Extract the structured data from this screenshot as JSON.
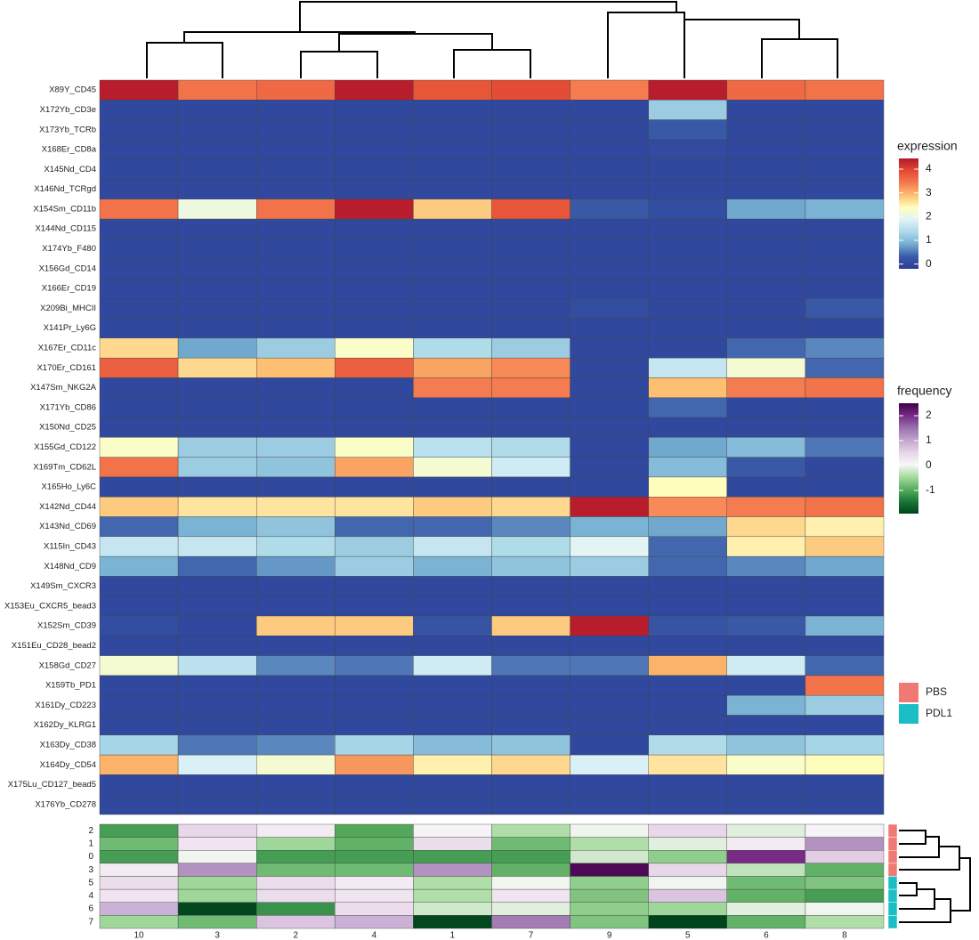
{
  "chart_data": {
    "type": "heatmap",
    "columns": [
      "10",
      "3",
      "2",
      "4",
      "1",
      "7",
      "9",
      "5",
      "6",
      "8"
    ],
    "rows": [
      "X89Y_CD45",
      "X172Yb_CD3e",
      "X173Yb_TCRb",
      "X168Er_CD8a",
      "X145Nd_CD4",
      "X146Nd_TCRgd",
      "X154Sm_CD11b",
      "X144Nd_CD115",
      "X174Yb_F480",
      "X156Gd_CD14",
      "X166Er_CD19",
      "X209Bi_MHCII",
      "X141Pr_Ly6G",
      "X167Er_CD11c",
      "X170Er_CD161",
      "X147Sm_NKG2A",
      "X171Yb_CD86",
      "X150Nd_CD25",
      "X155Gd_CD122",
      "X169Tm_CD62L",
      "X165Ho_Ly6C",
      "X142Nd_CD44",
      "X143Nd_CD69",
      "X115In_CD43",
      "X148Nd_CD9",
      "X149Sm_CXCR3",
      "X153Eu_CXCR5_bead3",
      "X152Sm_CD39",
      "X151Eu_CD28_bead2",
      "X158Gd_CD27",
      "X159Tb_PD1",
      "X161Dy_CD223",
      "X162Dy_KLRG1",
      "X163Dy_CD38",
      "X164Dy_CD54",
      "X175Lu_CD127_bead5",
      "X176Yb_CD278"
    ],
    "values": [
      [
        4.4,
        3.5,
        3.6,
        4.4,
        3.8,
        3.9,
        3.4,
        4.4,
        3.6,
        3.5
      ],
      [
        0,
        0,
        0,
        0,
        0,
        0,
        0,
        1.2,
        0,
        0
      ],
      [
        0,
        0,
        0,
        0,
        0,
        0,
        0,
        0.3,
        0,
        0
      ],
      [
        0,
        0,
        0,
        0,
        0,
        0,
        0,
        0.05,
        0,
        0
      ],
      [
        0,
        0,
        0,
        0,
        0,
        0,
        0,
        0,
        0,
        0
      ],
      [
        0,
        0,
        0,
        0,
        0,
        0,
        0,
        0,
        0,
        0
      ],
      [
        3.5,
        2.1,
        3.5,
        4.4,
        2.8,
        3.8,
        0.3,
        0.1,
        0.8,
        0.9
      ],
      [
        0,
        0,
        0,
        0,
        0,
        0,
        0,
        0,
        0,
        0
      ],
      [
        0,
        0,
        0,
        0,
        0,
        0,
        0,
        0,
        0,
        0
      ],
      [
        0,
        0,
        0,
        0,
        0,
        0,
        0,
        0,
        0,
        0
      ],
      [
        0,
        0,
        0,
        0,
        0,
        0,
        0,
        0,
        0,
        0
      ],
      [
        0,
        0,
        0,
        0,
        0,
        0,
        0.1,
        0,
        0,
        0.3
      ],
      [
        0,
        0,
        0,
        0,
        0,
        0,
        0,
        0,
        0,
        0
      ],
      [
        2.7,
        0.8,
        1.2,
        2.3,
        1.4,
        1.2,
        0,
        0,
        0.4,
        0.6
      ],
      [
        3.7,
        2.7,
        2.9,
        3.7,
        3.1,
        3.3,
        0,
        1.6,
        2.2,
        0.4
      ],
      [
        0,
        0,
        0,
        0,
        3.4,
        3.4,
        0,
        2.9,
        3.4,
        3.5
      ],
      [
        0,
        0,
        0,
        0,
        0,
        0,
        0,
        0.4,
        0,
        0
      ],
      [
        0,
        0,
        0,
        0,
        0,
        0,
        0,
        0,
        0,
        0
      ],
      [
        2.3,
        1.2,
        1.2,
        2.3,
        1.5,
        1.4,
        0,
        0.8,
        1.0,
        0.5
      ],
      [
        3.5,
        1.2,
        1.1,
        3.1,
        2.2,
        1.7,
        0,
        1.0,
        0.3,
        0
      ],
      [
        0,
        0,
        0,
        0,
        0,
        0,
        0,
        2.4,
        0,
        0
      ],
      [
        2.8,
        2.6,
        2.6,
        2.6,
        2.8,
        2.7,
        4.4,
        3.3,
        3.4,
        3.5
      ],
      [
        0.4,
        0.9,
        1.1,
        0.4,
        0.4,
        0.6,
        0.9,
        0.8,
        2.7,
        2.5
      ],
      [
        1.6,
        1.6,
        1.4,
        1.2,
        1.6,
        1.4,
        1.9,
        0.4,
        2.5,
        2.8
      ],
      [
        0.9,
        0.4,
        0.7,
        1.2,
        0.9,
        1.1,
        1.2,
        0.4,
        0.6,
        0.8
      ],
      [
        0,
        0,
        0,
        0,
        0,
        0,
        0,
        0,
        0,
        0
      ],
      [
        0,
        0,
        0,
        0,
        0,
        0,
        0,
        0,
        0,
        0
      ],
      [
        0.1,
        0,
        2.8,
        2.8,
        0.2,
        2.8,
        4.4,
        0.2,
        0.3,
        0.9
      ],
      [
        0,
        0,
        0,
        0,
        0,
        0,
        0,
        0,
        0,
        0
      ],
      [
        2.2,
        1.5,
        0.6,
        0.5,
        1.7,
        0.5,
        0.5,
        3.0,
        1.7,
        0.4
      ],
      [
        0,
        0,
        0,
        0,
        0,
        0,
        0,
        0,
        0,
        3.5
      ],
      [
        0,
        0,
        0,
        0,
        0,
        0,
        0,
        0,
        0.9,
        1.2
      ],
      [
        0,
        0,
        0,
        0,
        0,
        0,
        0,
        0,
        0,
        0
      ],
      [
        1.3,
        0.5,
        0.6,
        1.3,
        1.0,
        1.1,
        0,
        1.4,
        1.1,
        1.3
      ],
      [
        3.0,
        1.8,
        2.2,
        3.2,
        2.5,
        2.7,
        1.8,
        2.6,
        2.3,
        2.4
      ],
      [
        0,
        0,
        0,
        0,
        0,
        0,
        0,
        0,
        0,
        0
      ],
      [
        0,
        0,
        0,
        0,
        0,
        0,
        0,
        0,
        0,
        0
      ]
    ],
    "color_scale": {
      "title": "expression",
      "lim": [
        -0.2,
        4.45
      ],
      "ticks": [
        0,
        1,
        2,
        3,
        4
      ],
      "colors": [
        "#2a3d96",
        "#3a5aa8",
        "#74add1",
        "#abd9e9",
        "#e0f3f8",
        "#ffffbf",
        "#fdbf71",
        "#f57a4f",
        "#e34a33",
        "#b2182b"
      ]
    },
    "annotation": {
      "rows": [
        "2",
        "1",
        "0",
        "3",
        "5",
        "4",
        "6",
        "7"
      ],
      "values": [
        [
          -1.1,
          0.5,
          0.2,
          -1.0,
          0.1,
          -0.4,
          0.0,
          0.5,
          -0.1,
          0.1
        ],
        [
          -0.8,
          0.3,
          -0.5,
          -0.9,
          0.4,
          -0.8,
          -0.4,
          -0.1,
          0.2,
          1.2
        ],
        [
          -1.1,
          0.0,
          -1.1,
          -1.1,
          -1.1,
          -1.1,
          -0.2,
          -0.6,
          2.0,
          0.6
        ],
        [
          0.2,
          1.2,
          -0.8,
          -0.8,
          1.2,
          -0.9,
          2.4,
          0.5,
          -0.3,
          -0.9
        ],
        [
          0.4,
          -0.5,
          0.4,
          0.2,
          -0.4,
          0.0,
          -0.6,
          0.0,
          -0.8,
          -0.7
        ],
        [
          0.3,
          -0.5,
          0.4,
          0.3,
          -0.4,
          0.3,
          -0.7,
          0.7,
          -0.9,
          -1.1
        ],
        [
          0.9,
          -1.9,
          -1.2,
          0.4,
          -0.2,
          -0.1,
          -0.6,
          -0.5,
          -0.1,
          0.0
        ],
        [
          -0.5,
          -0.8,
          0.7,
          0.9,
          -1.9,
          1.4,
          -0.7,
          -2.0,
          -0.9,
          -0.4
        ]
      ],
      "groups": [
        "PBS",
        "PBS",
        "PBS",
        "PBS",
        "PDL1",
        "PDL1",
        "PDL1",
        "PDL1"
      ],
      "color_scale": {
        "title": "frequency",
        "lim": [
          -1.93,
          2.5
        ],
        "ticks": [
          -1,
          0,
          1,
          2
        ],
        "colors": [
          "#00441b",
          "#1b7837",
          "#5aae61",
          "#a6dba0",
          "#f7f7f7",
          "#e7d4e8",
          "#c2a5cf",
          "#9970ab",
          "#762a83",
          "#40004b"
        ]
      },
      "group_legend": {
        "names": [
          "PBS",
          "PDL1"
        ],
        "colors": [
          "#f07a73",
          "#1abec5"
        ]
      }
    }
  }
}
